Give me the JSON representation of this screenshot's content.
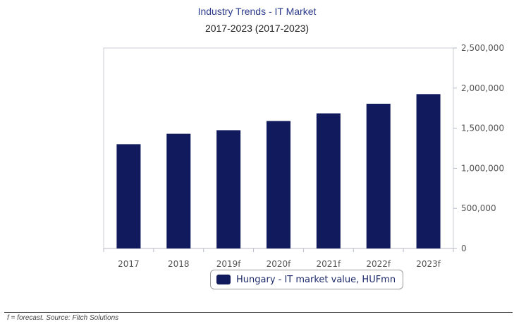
{
  "chart_data": {
    "type": "bar",
    "title": "Industry Trends - IT Market",
    "subtitle": "2017-2023 (2017-2023)",
    "categories": [
      "2017",
      "2018",
      "2019f",
      "2020f",
      "2021f",
      "2022f",
      "2023f"
    ],
    "series": [
      {
        "name": "Hungary - IT market value, HUFmn",
        "values": [
          1300000,
          1430000,
          1475000,
          1590000,
          1685000,
          1805000,
          1925000
        ],
        "color": "#111a5c"
      }
    ],
    "y_ticks": [
      "0",
      "500,000",
      "1,000,000",
      "1,500,000",
      "2,000,000",
      "2,500,000"
    ],
    "ylim": [
      0,
      2500000
    ],
    "y_axis_side": "right",
    "grid": false,
    "legend_position": "bottom-center",
    "xlabel": "",
    "ylabel": ""
  },
  "footnote": "f = forecast. Source: Fitch Solutions"
}
